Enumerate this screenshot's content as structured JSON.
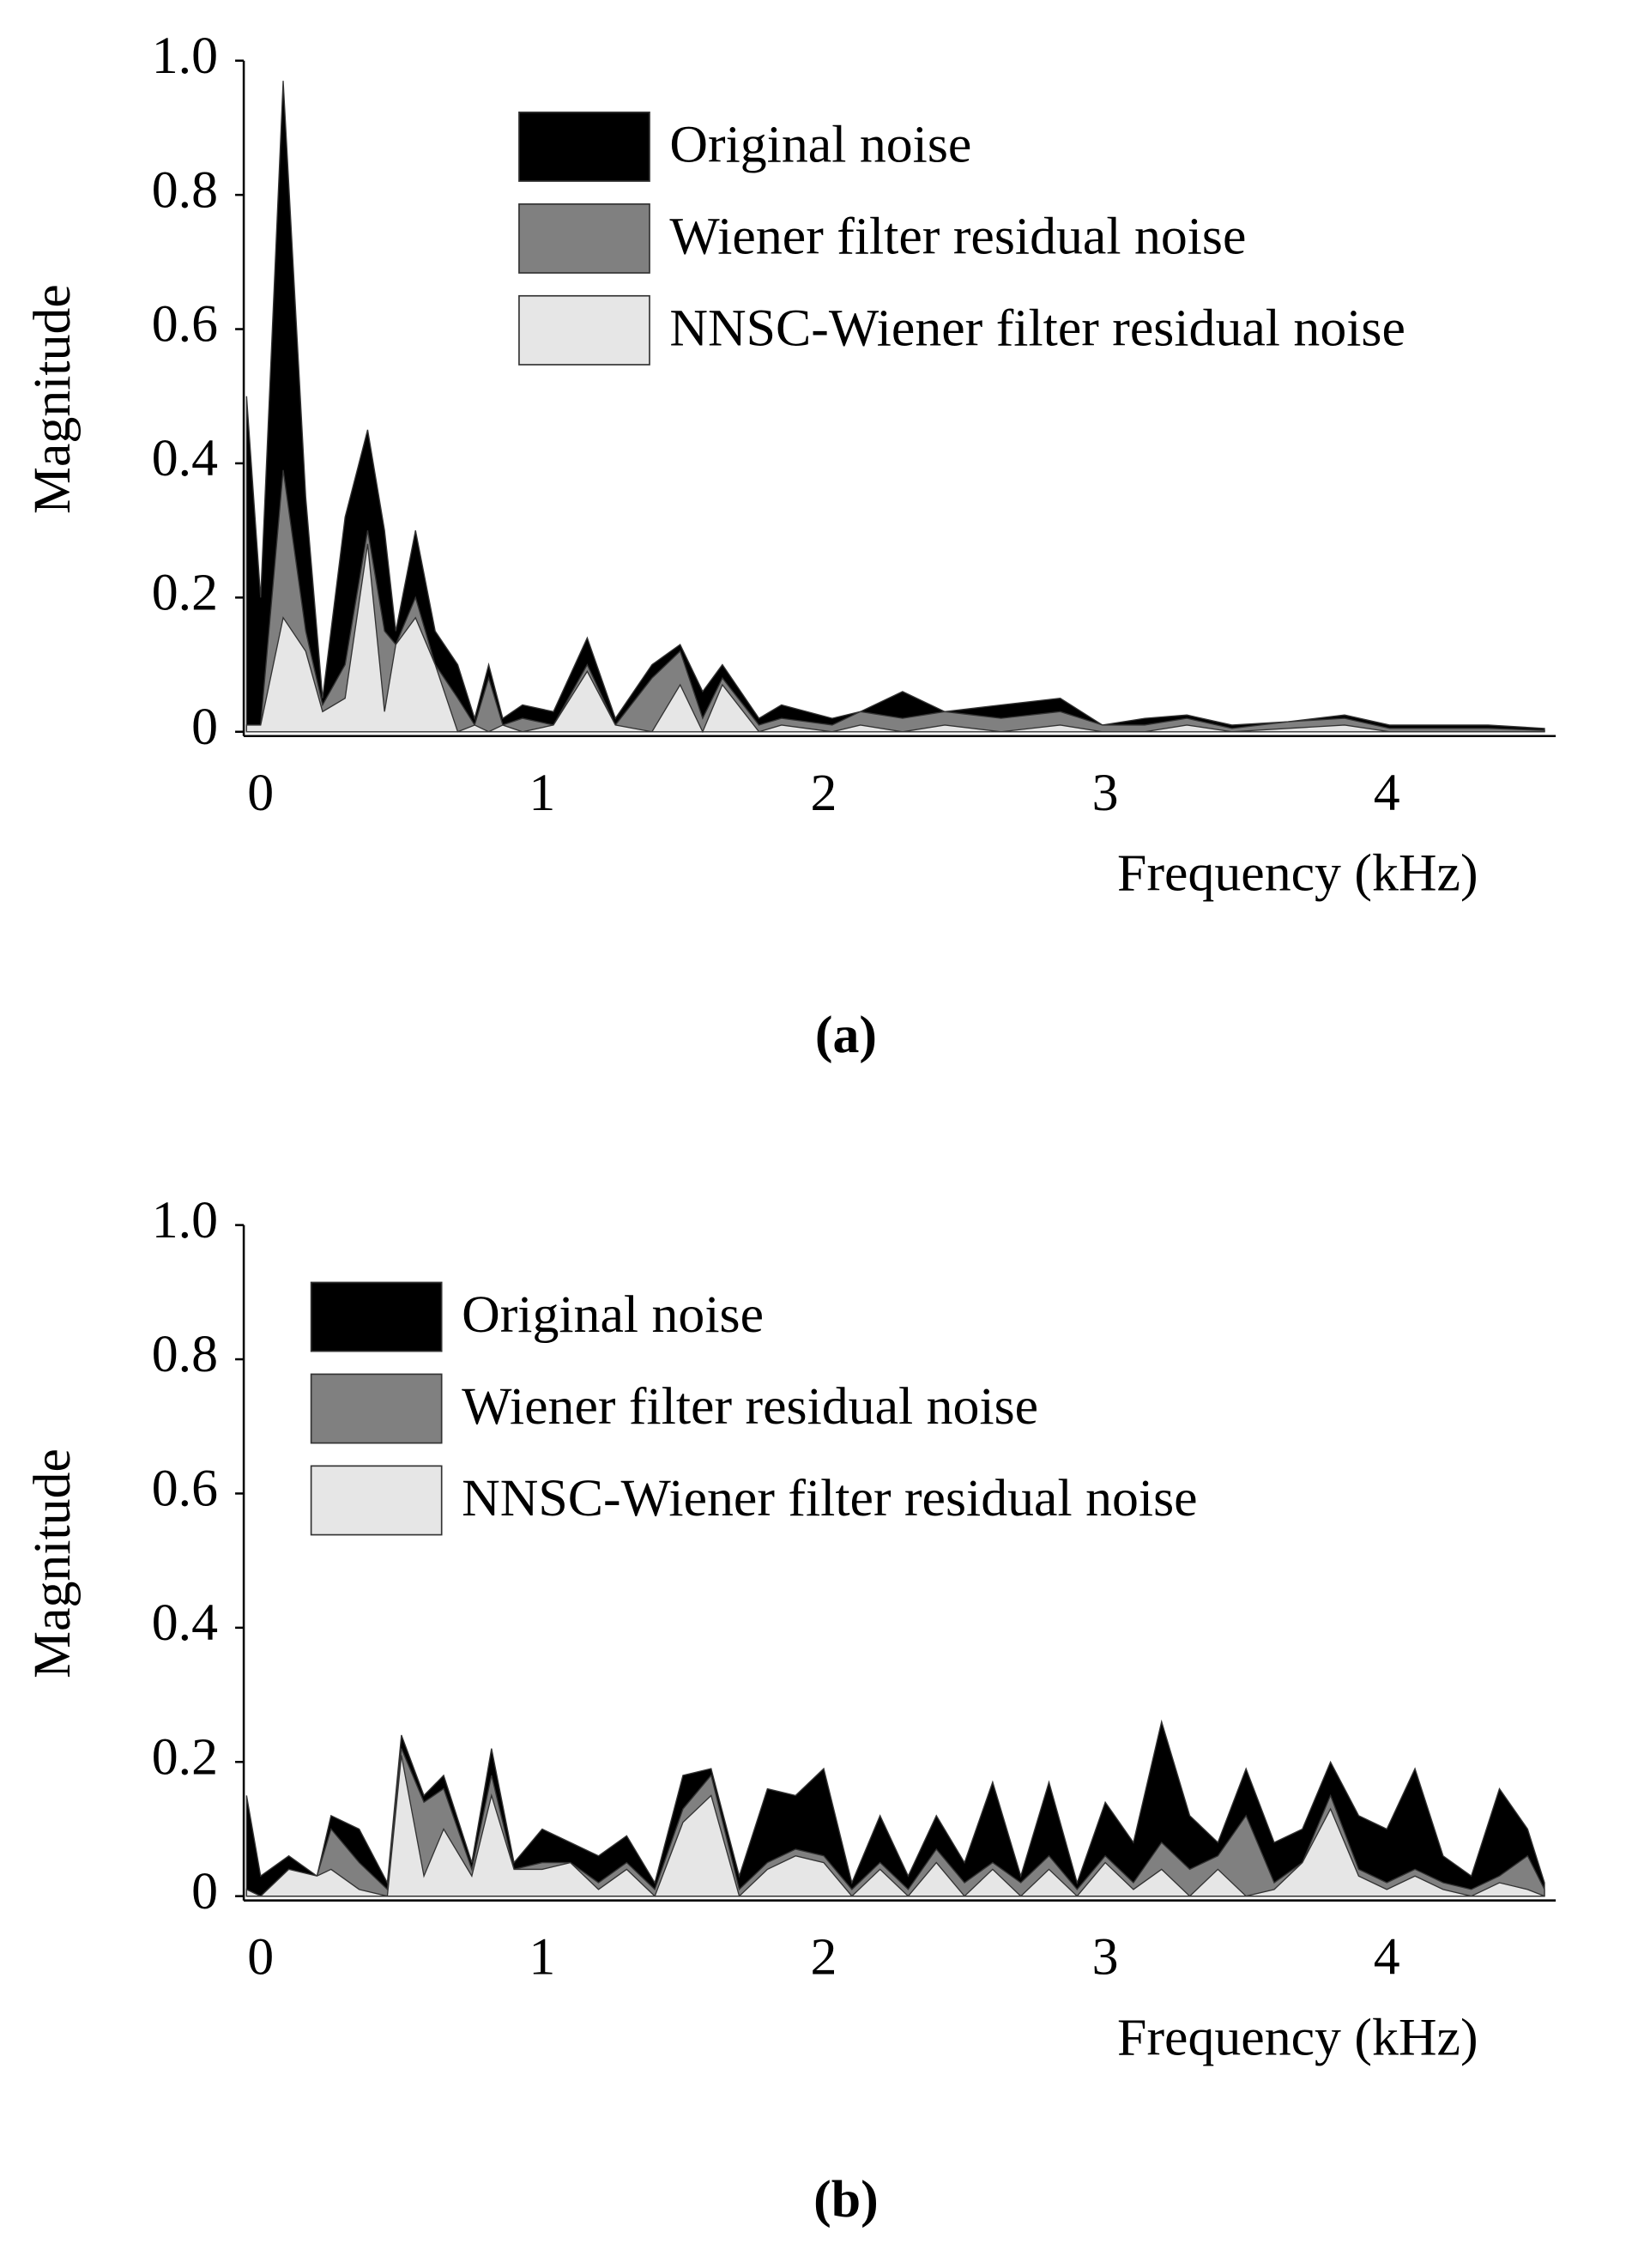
{
  "chart_data": [
    {
      "type": "area",
      "panel_label": "(a)",
      "y_label": "Magnitude",
      "x_label": "Frequency (kHz)",
      "legend": "top-right",
      "xlim": [
        -0.06,
        4.6
      ],
      "xticks": [
        0,
        1,
        2,
        3,
        4
      ],
      "ylim": [
        0,
        1
      ],
      "yticks": [
        0,
        0.2,
        0.4,
        0.6,
        0.8,
        {
          "value": 1,
          "label": "1.0"
        }
      ],
      "x": [
        -0.05,
        0,
        0.08,
        0.16,
        0.22,
        0.3,
        0.38,
        0.44,
        0.48,
        0.55,
        0.62,
        0.7,
        0.76,
        0.81,
        0.86,
        0.93,
        1.04,
        1.16,
        1.26,
        1.39,
        1.49,
        1.57,
        1.64,
        1.77,
        1.85,
        2.03,
        2.13,
        2.28,
        2.43,
        2.63,
        2.84,
        2.99,
        3.14,
        3.29,
        3.45,
        3.65,
        3.85,
        4.01,
        4.16,
        4.36,
        4.56
      ],
      "series": [
        {
          "name": "Original noise",
          "color": "#000000",
          "values": [
            0.5,
            0.2,
            0.97,
            0.35,
            0.05,
            0.32,
            0.45,
            0.3,
            0.15,
            0.3,
            0.15,
            0.1,
            0.02,
            0.1,
            0.02,
            0.04,
            0.03,
            0.14,
            0.02,
            0.1,
            0.13,
            0.06,
            0.1,
            0.02,
            0.04,
            0.02,
            0.03,
            0.06,
            0.03,
            0.04,
            0.05,
            0.01,
            0.02,
            0.025,
            0.01,
            0.015,
            0.025,
            0.01,
            0.01,
            0.01,
            0.005
          ]
        },
        {
          "name": "Wiener filter residual noise",
          "color": "#808080",
          "values": [
            0.01,
            0.01,
            0.39,
            0.15,
            0.04,
            0.1,
            0.3,
            0.15,
            0.13,
            0.2,
            0.1,
            0.05,
            0.01,
            0.08,
            0.01,
            0.02,
            0.01,
            0.1,
            0.01,
            0.08,
            0.12,
            0.02,
            0.08,
            0.01,
            0.02,
            0.01,
            0.03,
            0.02,
            0.03,
            0.02,
            0.03,
            0.01,
            0.01,
            0.02,
            0.005,
            0.015,
            0.02,
            0.005,
            0.005,
            0.005,
            0.002
          ]
        },
        {
          "name": "NNSC-Wiener filter residual noise",
          "color": "#e6e6e6",
          "values": [
            0.01,
            0.01,
            0.17,
            0.12,
            0.03,
            0.05,
            0.28,
            0.03,
            0.13,
            0.17,
            0.1,
            0.0,
            0.01,
            0.0,
            0.01,
            0.0,
            0.01,
            0.09,
            0.01,
            0.0,
            0.07,
            0.0,
            0.07,
            0.0,
            0.01,
            0.0,
            0.01,
            0.0,
            0.01,
            0.0,
            0.01,
            0.0,
            0.0,
            0.01,
            0.0,
            0.005,
            0.01,
            0.0,
            0.0,
            0.0,
            0.0
          ]
        }
      ]
    },
    {
      "type": "area",
      "panel_label": "(b)",
      "y_label": "Magnitude",
      "x_label": "Frequency (kHz)",
      "legend": "top-left",
      "xlim": [
        -0.06,
        4.6
      ],
      "xticks": [
        0,
        1,
        2,
        3,
        4
      ],
      "ylim": [
        0,
        1
      ],
      "yticks": [
        0,
        0.2,
        0.4,
        0.6,
        0.8,
        {
          "value": 1,
          "label": "1.0"
        }
      ],
      "x": [
        -0.05,
        0,
        0.1,
        0.2,
        0.25,
        0.35,
        0.45,
        0.5,
        0.58,
        0.65,
        0.75,
        0.82,
        0.9,
        1.0,
        1.1,
        1.2,
        1.3,
        1.4,
        1.5,
        1.6,
        1.7,
        1.8,
        1.9,
        2.0,
        2.1,
        2.2,
        2.3,
        2.4,
        2.5,
        2.6,
        2.7,
        2.8,
        2.9,
        3.0,
        3.1,
        3.2,
        3.3,
        3.4,
        3.5,
        3.6,
        3.7,
        3.8,
        3.9,
        4.0,
        4.1,
        4.2,
        4.3,
        4.4,
        4.5,
        4.56
      ],
      "series": [
        {
          "name": "Original noise",
          "color": "#000000",
          "values": [
            0.15,
            0.03,
            0.06,
            0.03,
            0.12,
            0.1,
            0.02,
            0.24,
            0.15,
            0.18,
            0.05,
            0.22,
            0.05,
            0.1,
            0.08,
            0.06,
            0.09,
            0.02,
            0.18,
            0.19,
            0.03,
            0.16,
            0.15,
            0.19,
            0.02,
            0.12,
            0.03,
            0.12,
            0.05,
            0.17,
            0.03,
            0.17,
            0.02,
            0.14,
            0.08,
            0.26,
            0.12,
            0.08,
            0.19,
            0.08,
            0.1,
            0.2,
            0.12,
            0.1,
            0.19,
            0.06,
            0.03,
            0.16,
            0.1,
            0.02
          ]
        },
        {
          "name": "Wiener filter residual noise",
          "color": "#808080",
          "values": [
            0.01,
            0.0,
            0.04,
            0.03,
            0.1,
            0.05,
            0.01,
            0.22,
            0.14,
            0.16,
            0.04,
            0.18,
            0.04,
            0.05,
            0.05,
            0.02,
            0.05,
            0.01,
            0.13,
            0.18,
            0.01,
            0.05,
            0.07,
            0.06,
            0.01,
            0.05,
            0.01,
            0.07,
            0.02,
            0.05,
            0.02,
            0.06,
            0.01,
            0.06,
            0.02,
            0.08,
            0.04,
            0.06,
            0.12,
            0.02,
            0.05,
            0.15,
            0.04,
            0.02,
            0.04,
            0.02,
            0.01,
            0.03,
            0.06,
            0.01
          ]
        },
        {
          "name": "NNSC-Wiener filter residual noise",
          "color": "#e6e6e6",
          "values": [
            0.01,
            0.0,
            0.04,
            0.03,
            0.04,
            0.01,
            0.0,
            0.21,
            0.03,
            0.1,
            0.03,
            0.15,
            0.04,
            0.04,
            0.05,
            0.01,
            0.04,
            0.0,
            0.11,
            0.15,
            0.0,
            0.04,
            0.06,
            0.05,
            0.0,
            0.04,
            0.0,
            0.05,
            0.0,
            0.04,
            0.0,
            0.04,
            0.0,
            0.05,
            0.01,
            0.04,
            0.0,
            0.04,
            0.0,
            0.01,
            0.05,
            0.13,
            0.03,
            0.01,
            0.03,
            0.01,
            0.0,
            0.02,
            0.01,
            0.0
          ]
        }
      ]
    }
  ]
}
